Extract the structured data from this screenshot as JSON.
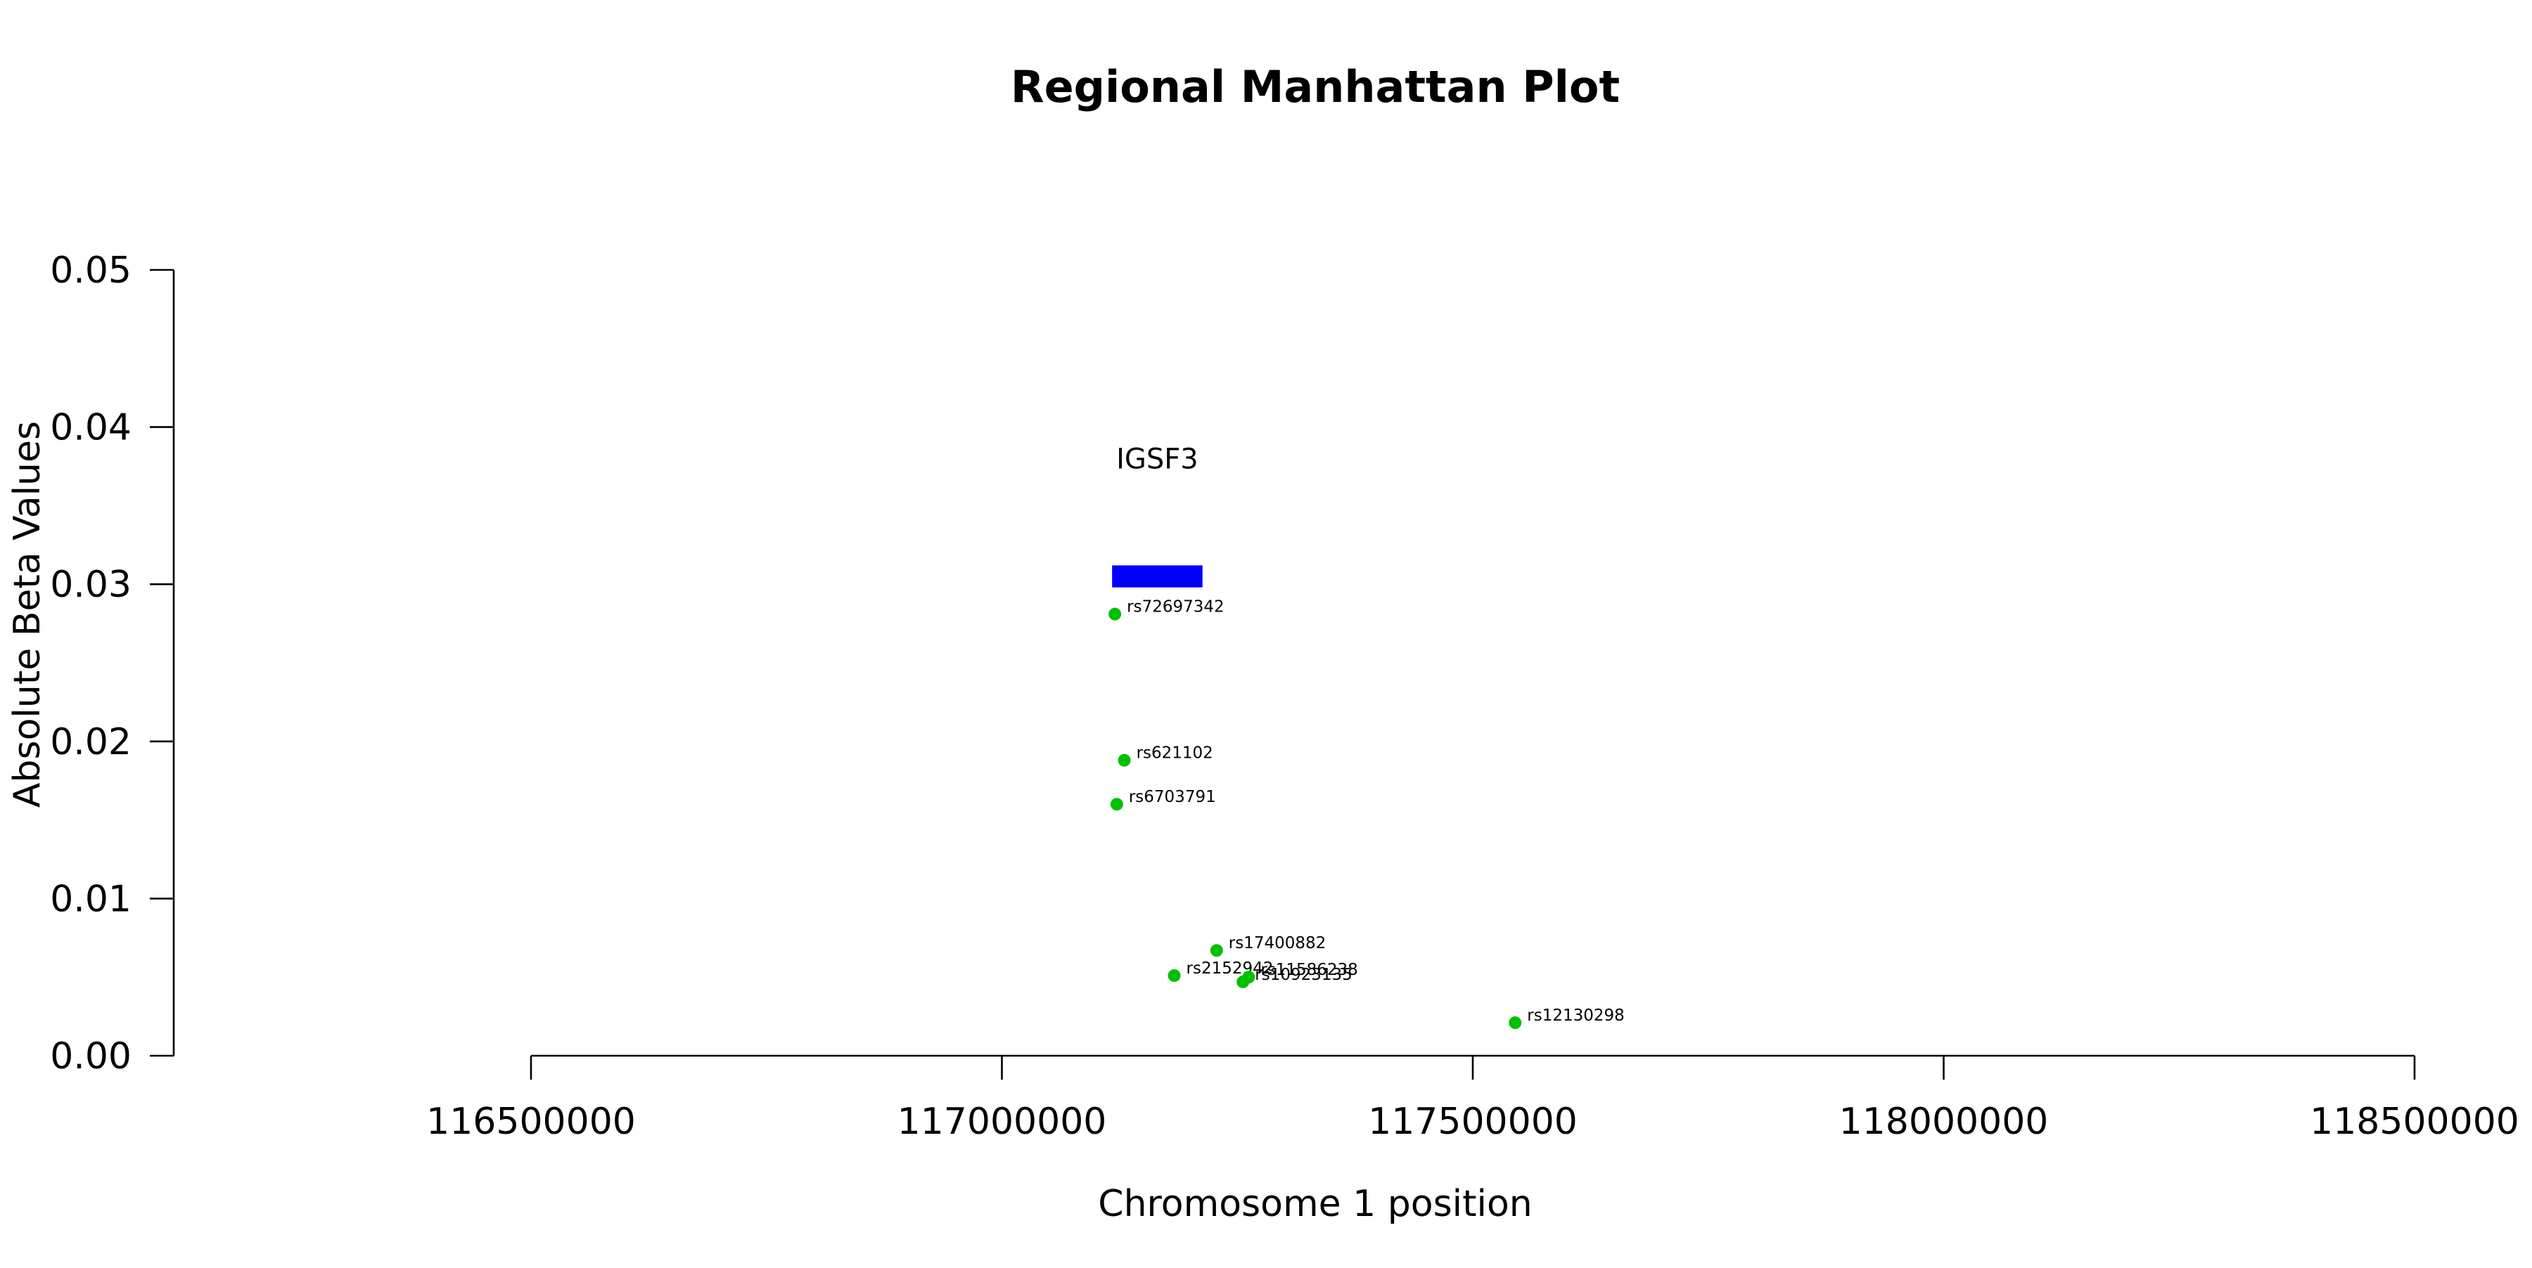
{
  "chart_data": {
    "type": "scatter",
    "title": "Regional Manhattan Plot",
    "xlabel": "Chromosome 1 position",
    "ylabel": "Absolute Beta Values",
    "xlim": [
      116500000,
      118500000
    ],
    "ylim": [
      0,
      0.05
    ],
    "x_ticks": [
      116500000,
      117000000,
      117500000,
      118000000,
      118500000
    ],
    "x_tick_labels": [
      "116500000",
      "117000000",
      "117500000",
      "118000000",
      "118500000"
    ],
    "y_ticks": [
      0,
      0.01,
      0.02,
      0.03,
      0.04,
      0.05
    ],
    "y_tick_labels": [
      "0.00",
      "0.01",
      "0.02",
      "0.03",
      "0.04",
      "0.05"
    ],
    "grid": false,
    "point_color": "#00c000",
    "points": [
      {
        "label": "rs72697342",
        "x": 117120000,
        "y": 0.0281
      },
      {
        "label": "rs621102",
        "x": 117130000,
        "y": 0.0188
      },
      {
        "label": "rs6703791",
        "x": 117122000,
        "y": 0.016
      },
      {
        "label": "rs17400882",
        "x": 117228000,
        "y": 0.0067
      },
      {
        "label": "rs2152942",
        "x": 117183000,
        "y": 0.0051
      },
      {
        "label": "rs10923135",
        "x": 117256000,
        "y": 0.0047
      },
      {
        "label": "rs11586238",
        "x": 117262000,
        "y": 0.005
      },
      {
        "label": "rs12130298",
        "x": 117545000,
        "y": 0.0021
      }
    ],
    "genes": [
      {
        "name": "IGSF3",
        "start": 117117000,
        "end": 117213000,
        "y_bottom": 0.0298,
        "y_top": 0.0312,
        "label_y": 0.038,
        "color": "#0000ff"
      }
    ]
  }
}
